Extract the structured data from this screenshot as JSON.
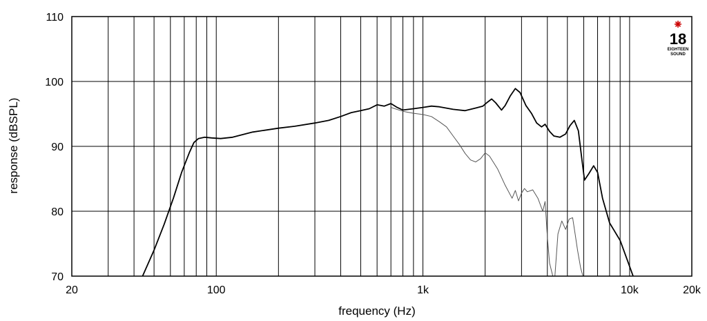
{
  "chart_data": {
    "type": "line",
    "title": "",
    "xlabel": "frequency (Hz)",
    "ylabel": "response (dBSPL)",
    "x_scale": "log",
    "xlim": [
      20,
      20000
    ],
    "ylim": [
      70,
      110
    ],
    "grid": true,
    "x_ticks": [
      {
        "value": 20,
        "label": "20"
      },
      {
        "value": 100,
        "label": "100"
      },
      {
        "value": 1000,
        "label": "1k"
      },
      {
        "value": 10000,
        "label": "10k"
      },
      {
        "value": 20000,
        "label": "20k"
      }
    ],
    "y_ticks": [
      {
        "value": 70,
        "label": "70"
      },
      {
        "value": 80,
        "label": "80"
      },
      {
        "value": 90,
        "label": "90"
      },
      {
        "value": 100,
        "label": "100"
      },
      {
        "value": 110,
        "label": "110"
      }
    ],
    "series": [
      {
        "color": "#000000",
        "points": [
          [
            44,
            70
          ],
          [
            50,
            74
          ],
          [
            56,
            78
          ],
          [
            62,
            82
          ],
          [
            68,
            86
          ],
          [
            74,
            89
          ],
          [
            78,
            90.6
          ],
          [
            82,
            91.2
          ],
          [
            88,
            91.4
          ],
          [
            95,
            91.3
          ],
          [
            105,
            91.2
          ],
          [
            120,
            91.4
          ],
          [
            150,
            92.2
          ],
          [
            200,
            92.8
          ],
          [
            240,
            93.1
          ],
          [
            300,
            93.6
          ],
          [
            350,
            94.0
          ],
          [
            400,
            94.6
          ],
          [
            450,
            95.2
          ],
          [
            500,
            95.5
          ],
          [
            550,
            95.8
          ],
          [
            600,
            96.4
          ],
          [
            650,
            96.2
          ],
          [
            700,
            96.6
          ],
          [
            750,
            96.0
          ],
          [
            800,
            95.6
          ],
          [
            900,
            95.8
          ],
          [
            1000,
            96.0
          ],
          [
            1100,
            96.2
          ],
          [
            1200,
            96.1
          ],
          [
            1400,
            95.7
          ],
          [
            1600,
            95.5
          ],
          [
            1800,
            95.9
          ],
          [
            1950,
            96.2
          ],
          [
            2050,
            96.8
          ],
          [
            2150,
            97.3
          ],
          [
            2250,
            96.7
          ],
          [
            2400,
            95.6
          ],
          [
            2500,
            96.3
          ],
          [
            2650,
            97.8
          ],
          [
            2800,
            98.9
          ],
          [
            2950,
            98.3
          ],
          [
            3150,
            96.3
          ],
          [
            3350,
            95.1
          ],
          [
            3550,
            93.6
          ],
          [
            3750,
            93.0
          ],
          [
            3900,
            93.4
          ],
          [
            4100,
            92.3
          ],
          [
            4300,
            91.6
          ],
          [
            4600,
            91.4
          ],
          [
            4900,
            91.9
          ],
          [
            5150,
            93.2
          ],
          [
            5400,
            94.0
          ],
          [
            5650,
            92.4
          ],
          [
            5850,
            88.5
          ],
          [
            6050,
            84.8
          ],
          [
            6350,
            85.8
          ],
          [
            6700,
            87.0
          ],
          [
            7000,
            86.0
          ],
          [
            7400,
            82.0
          ],
          [
            8000,
            78.2
          ],
          [
            9000,
            75.5
          ],
          [
            10000,
            71.5
          ],
          [
            10400,
            70
          ]
        ]
      },
      {
        "color": "#555555",
        "points": [
          [
            700,
            96.0
          ],
          [
            800,
            95.4
          ],
          [
            900,
            95.1
          ],
          [
            1000,
            94.9
          ],
          [
            1100,
            94.6
          ],
          [
            1200,
            93.8
          ],
          [
            1300,
            93.0
          ],
          [
            1400,
            91.6
          ],
          [
            1500,
            90.3
          ],
          [
            1600,
            88.9
          ],
          [
            1700,
            87.9
          ],
          [
            1800,
            87.6
          ],
          [
            1900,
            88.1
          ],
          [
            2000,
            89.0
          ],
          [
            2100,
            88.5
          ],
          [
            2300,
            86.5
          ],
          [
            2500,
            84.0
          ],
          [
            2700,
            82.0
          ],
          [
            2800,
            83.2
          ],
          [
            2900,
            81.6
          ],
          [
            3000,
            82.8
          ],
          [
            3100,
            83.5
          ],
          [
            3200,
            83.0
          ],
          [
            3400,
            83.3
          ],
          [
            3600,
            82.0
          ],
          [
            3800,
            80.0
          ],
          [
            3900,
            81.5
          ],
          [
            4000,
            76.0
          ],
          [
            4100,
            72.0
          ],
          [
            4250,
            70
          ],
          [
            4350,
            70
          ],
          [
            4500,
            76.5
          ],
          [
            4700,
            78.5
          ],
          [
            4900,
            77.2
          ],
          [
            5100,
            78.8
          ],
          [
            5300,
            79.0
          ],
          [
            5450,
            76.5
          ],
          [
            5600,
            74.0
          ],
          [
            5800,
            71.2
          ],
          [
            5950,
            70
          ]
        ]
      }
    ]
  },
  "logo": {
    "number": "18",
    "text_line1": "EIGHTEEN",
    "text_line2": "SOUND"
  }
}
